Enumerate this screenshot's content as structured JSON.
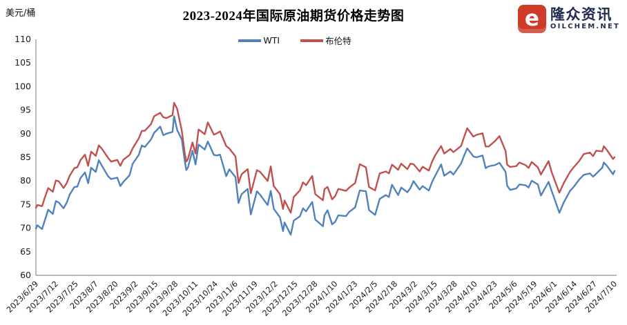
{
  "logo": {
    "brand_name": "隆众资讯",
    "domain": "OILCHEM.NET",
    "icon_glyph": "e",
    "red": "#ce3b28",
    "navy": "#1f2a4e"
  },
  "chart_data": {
    "type": "line",
    "title": "2023-2024年国际原油期货价格走势图",
    "ylabel": "美元/桶",
    "xlabel": "",
    "ylim": [
      60,
      110
    ],
    "y_ticks": [
      110,
      105,
      100,
      95,
      90,
      85,
      80,
      75,
      70,
      65,
      60
    ],
    "grid": false,
    "legend_position": "top-center",
    "x_tick_labels": [
      "2023/6/29",
      "2023/7/12",
      "2023/7/25",
      "2023/8/7",
      "2023/8/20",
      "2023/9/2",
      "2023/9/15",
      "2023/9/28",
      "2023/10/11",
      "2023/10/24",
      "2023/11/6",
      "2023/11/19",
      "2023/12/2",
      "2023/12/15",
      "2023/12/28",
      "2024/1/10",
      "2024/1/23",
      "2024/2/5",
      "2024/2/18",
      "2024/3/2",
      "2024/3/15",
      "2024/3/28",
      "2024/4/10",
      "2024/4/23",
      "2024/5/6",
      "2024/5/19",
      "2024/6/1",
      "2024/6/14",
      "2024/6/27",
      "2024/7/10"
    ],
    "x_tick_interval_days": 13,
    "dates": [
      "2023-06-29",
      "2023-06-30",
      "2023-07-03",
      "2023-07-05",
      "2023-07-07",
      "2023-07-10",
      "2023-07-12",
      "2023-07-14",
      "2023-07-17",
      "2023-07-19",
      "2023-07-21",
      "2023-07-24",
      "2023-07-26",
      "2023-07-28",
      "2023-07-31",
      "2023-08-02",
      "2023-08-04",
      "2023-08-07",
      "2023-08-09",
      "2023-08-11",
      "2023-08-15",
      "2023-08-17",
      "2023-08-21",
      "2023-08-23",
      "2023-08-25",
      "2023-08-29",
      "2023-08-31",
      "2023-09-04",
      "2023-09-06",
      "2023-09-08",
      "2023-09-12",
      "2023-09-14",
      "2023-09-18",
      "2023-09-20",
      "2023-09-22",
      "2023-09-26",
      "2023-09-27",
      "2023-09-29",
      "2023-10-02",
      "2023-10-04",
      "2023-10-05",
      "2023-10-06",
      "2023-10-09",
      "2023-10-11",
      "2023-10-13",
      "2023-10-17",
      "2023-10-19",
      "2023-10-23",
      "2023-10-25",
      "2023-10-27",
      "2023-10-31",
      "2023-11-02",
      "2023-11-06",
      "2023-11-08",
      "2023-11-10",
      "2023-11-14",
      "2023-11-16",
      "2023-11-20",
      "2023-11-22",
      "2023-11-27",
      "2023-11-29",
      "2023-12-01",
      "2023-12-05",
      "2023-12-07",
      "2023-12-08",
      "2023-12-12",
      "2023-12-14",
      "2023-12-18",
      "2023-12-20",
      "2023-12-22",
      "2023-12-26",
      "2023-12-28",
      "2024-01-02",
      "2024-01-03",
      "2024-01-05",
      "2024-01-08",
      "2024-01-10",
      "2024-01-12",
      "2024-01-17",
      "2024-01-19",
      "2024-01-23",
      "2024-01-26",
      "2024-01-30",
      "2024-02-01",
      "2024-02-05",
      "2024-02-08",
      "2024-02-12",
      "2024-02-14",
      "2024-02-16",
      "2024-02-20",
      "2024-02-22",
      "2024-02-26",
      "2024-02-28",
      "2024-03-01",
      "2024-03-05",
      "2024-03-07",
      "2024-03-11",
      "2024-03-13",
      "2024-03-15",
      "2024-03-19",
      "2024-03-21",
      "2024-03-25",
      "2024-03-27",
      "2024-04-01",
      "2024-04-03",
      "2024-04-05",
      "2024-04-09",
      "2024-04-11",
      "2024-04-15",
      "2024-04-17",
      "2024-04-19",
      "2024-04-23",
      "2024-04-26",
      "2024-04-30",
      "2024-05-01",
      "2024-05-03",
      "2024-05-07",
      "2024-05-09",
      "2024-05-13",
      "2024-05-15",
      "2024-05-17",
      "2024-05-21",
      "2024-05-23",
      "2024-05-28",
      "2024-05-30",
      "2024-06-03",
      "2024-06-04",
      "2024-06-07",
      "2024-06-11",
      "2024-06-13",
      "2024-06-17",
      "2024-06-20",
      "2024-06-24",
      "2024-06-26",
      "2024-06-28",
      "2024-07-02",
      "2024-07-03",
      "2024-07-05",
      "2024-07-09",
      "2024-07-10"
    ],
    "series": [
      {
        "name": "WTI",
        "color": "#4F81BD",
        "values": [
          69.9,
          70.6,
          69.8,
          71.8,
          73.9,
          73.0,
          75.75,
          75.4,
          74.2,
          75.35,
          77.1,
          78.7,
          78.8,
          80.6,
          81.8,
          79.5,
          82.8,
          81.9,
          84.4,
          83.2,
          81.0,
          80.4,
          80.7,
          78.9,
          79.8,
          81.2,
          83.6,
          85.5,
          87.5,
          87.2,
          88.8,
          90.2,
          91.5,
          89.7,
          90.0,
          90.4,
          93.7,
          90.8,
          88.8,
          84.2,
          82.3,
          82.8,
          86.4,
          83.5,
          87.7,
          86.65,
          88.35,
          85.5,
          85.4,
          85.55,
          81.0,
          82.45,
          80.8,
          75.3,
          77.2,
          78.3,
          72.9,
          77.8,
          77.1,
          74.9,
          77.9,
          74.1,
          72.3,
          69.35,
          71.2,
          68.6,
          71.6,
          72.5,
          74.2,
          73.55,
          75.55,
          71.8,
          70.4,
          72.7,
          73.8,
          70.8,
          71.35,
          72.7,
          72.55,
          73.4,
          74.4,
          78.0,
          77.8,
          73.8,
          72.8,
          76.2,
          77.0,
          76.6,
          79.2,
          77.0,
          78.6,
          77.6,
          78.5,
          79.95,
          78.15,
          78.9,
          77.95,
          79.7,
          81.0,
          83.5,
          81.1,
          82.0,
          81.35,
          83.7,
          85.4,
          86.9,
          85.2,
          85.0,
          85.4,
          82.7,
          83.1,
          83.35,
          83.85,
          81.9,
          79.0,
          78.1,
          78.4,
          79.25,
          79.1,
          78.6,
          80.05,
          79.25,
          76.9,
          79.8,
          77.9,
          74.2,
          73.25,
          75.5,
          77.9,
          78.6,
          80.3,
          81.3,
          81.6,
          80.9,
          81.5,
          82.8,
          83.9,
          83.2,
          81.4,
          82.1
        ]
      },
      {
        "name": "布伦特",
        "color": "#C0504D",
        "values": [
          74.3,
          74.9,
          74.65,
          76.65,
          78.5,
          77.7,
          80.1,
          79.9,
          78.5,
          79.5,
          81.1,
          82.7,
          82.9,
          84.4,
          85.55,
          83.2,
          86.2,
          85.3,
          87.55,
          86.8,
          84.9,
          84.1,
          84.45,
          83.2,
          84.5,
          85.5,
          86.85,
          89.0,
          90.6,
          90.65,
          92.05,
          93.7,
          94.45,
          93.5,
          93.3,
          93.95,
          96.55,
          95.3,
          90.7,
          85.8,
          84.1,
          84.6,
          88.15,
          85.8,
          90.9,
          89.9,
          92.4,
          89.8,
          90.1,
          90.5,
          87.4,
          86.85,
          85.2,
          79.55,
          81.4,
          82.5,
          77.4,
          82.3,
          81.95,
          80.0,
          83.1,
          78.9,
          77.2,
          74.05,
          75.85,
          73.25,
          76.6,
          78.0,
          79.7,
          79.1,
          81.05,
          77.2,
          75.9,
          78.25,
          78.75,
          76.1,
          76.8,
          78.3,
          77.9,
          78.55,
          79.55,
          83.55,
          82.9,
          78.7,
          78.0,
          81.6,
          82.0,
          81.6,
          83.45,
          82.35,
          83.65,
          82.5,
          83.65,
          83.55,
          82.0,
          83.0,
          82.2,
          84.0,
          85.35,
          87.4,
          85.8,
          86.75,
          86.1,
          87.4,
          89.35,
          91.15,
          89.4,
          89.75,
          90.1,
          87.3,
          87.3,
          88.4,
          89.5,
          86.3,
          83.45,
          82.95,
          83.15,
          83.9,
          83.35,
          82.75,
          84.0,
          82.9,
          81.35,
          84.2,
          81.85,
          78.35,
          77.5,
          79.6,
          81.9,
          82.75,
          84.25,
          85.7,
          86.0,
          85.25,
          86.4,
          86.25,
          87.35,
          86.55,
          84.65,
          85.05
        ]
      }
    ]
  }
}
